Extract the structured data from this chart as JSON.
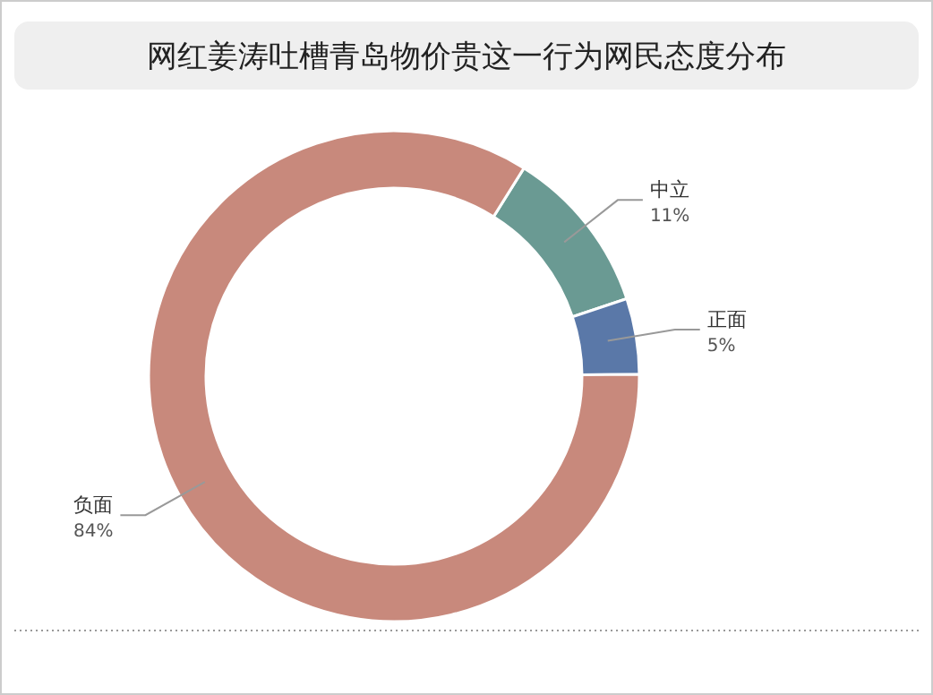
{
  "chart_data": {
    "type": "donut",
    "title": "网红姜涛吐槽青岛物价贵这一行为网民态度分布",
    "categories": [
      "中立",
      "正面",
      "负面"
    ],
    "values": [
      11,
      5,
      84
    ],
    "value_labels": [
      "11%",
      "5%",
      "84%"
    ],
    "colors": [
      "#6a9a93",
      "#5a78a8",
      "#c8897c"
    ]
  }
}
